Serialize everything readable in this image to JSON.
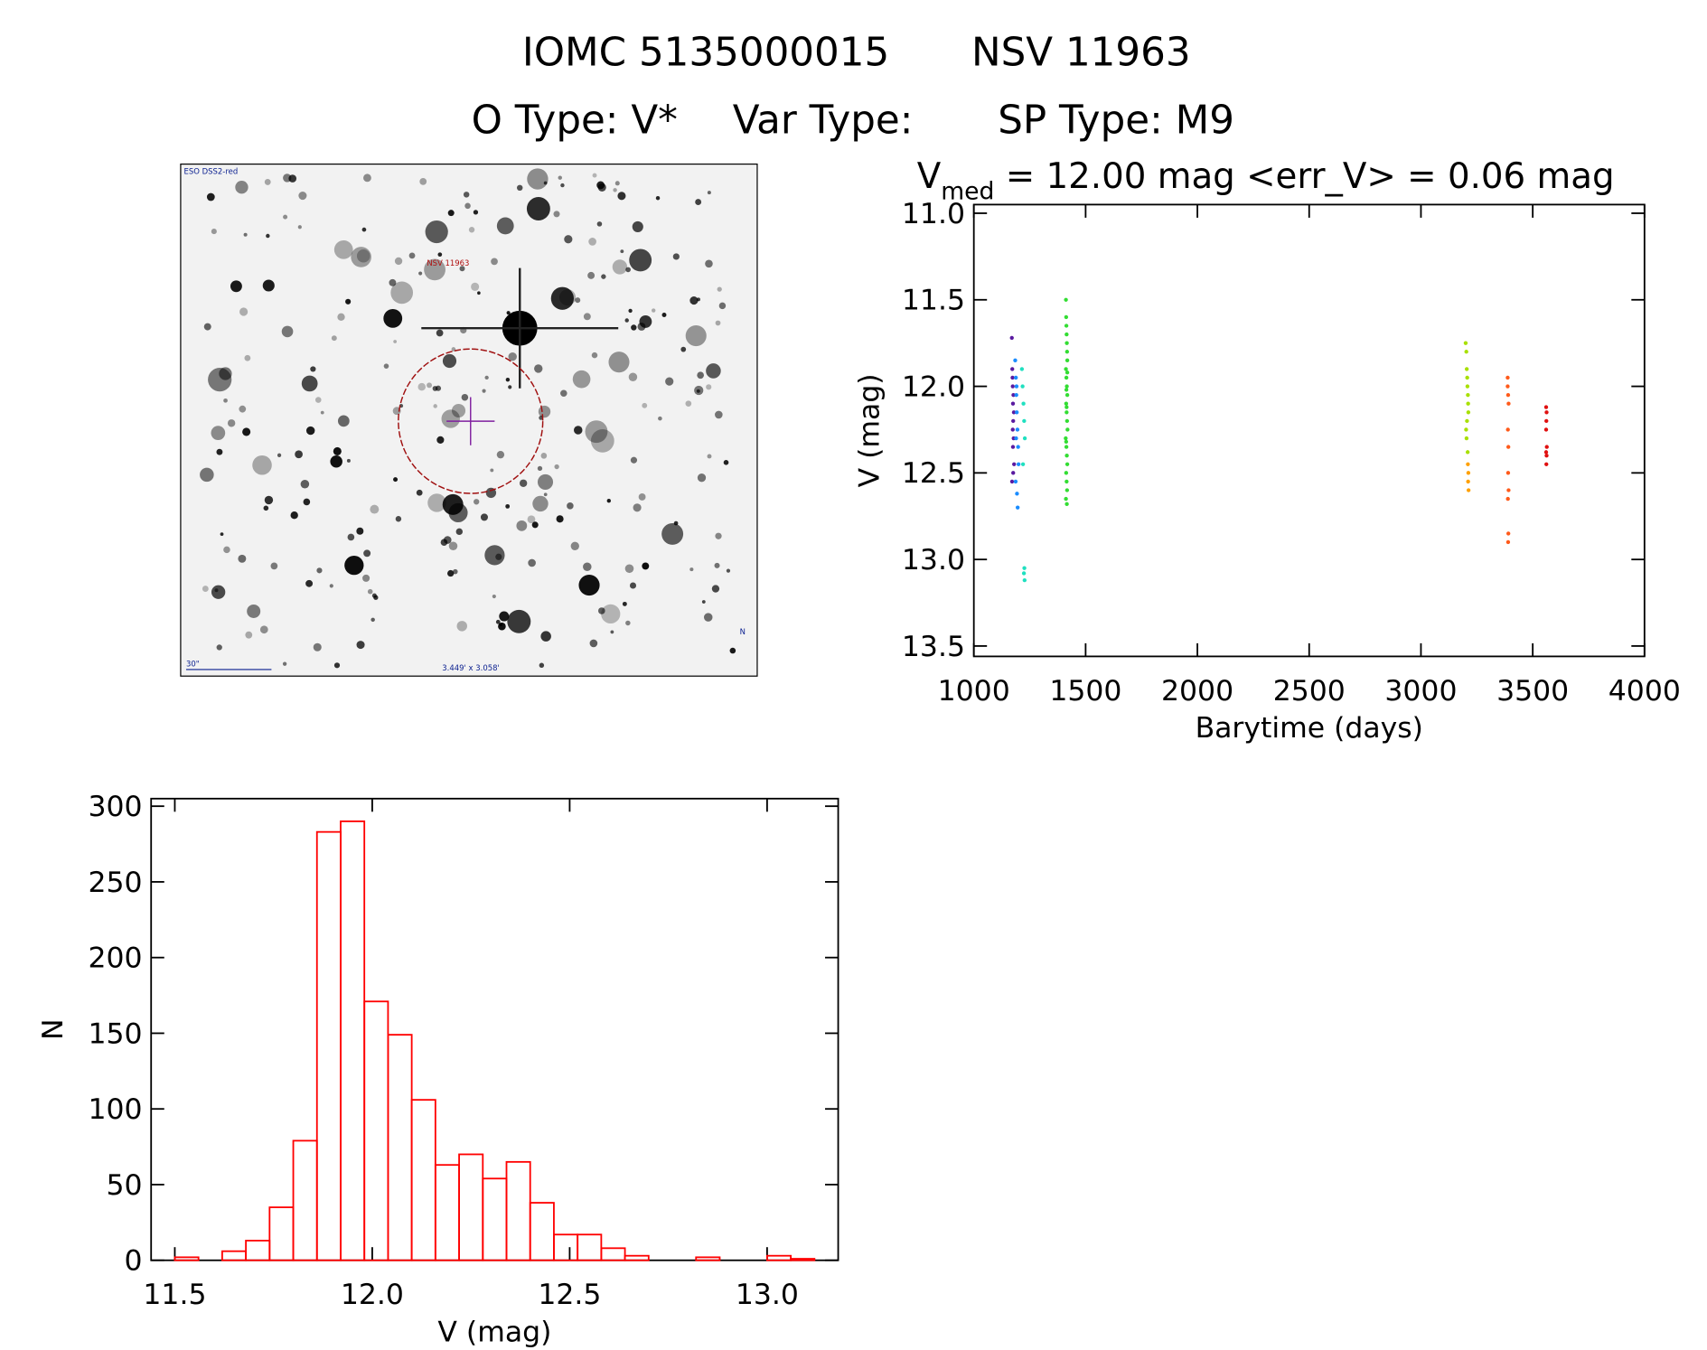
{
  "header": {
    "id": "IOMC 5135000015",
    "name": "NSV 11963",
    "o_type": "O Type: V*",
    "var_type": "Var Type:",
    "sp_type": "SP Type: M9"
  },
  "finder": {
    "survey": "ESO DSS2-red",
    "target": "NSV 11963",
    "scale": "30\"",
    "size": "3.449' x 3.058'",
    "north": "N"
  },
  "chart_data": [
    {
      "type": "scatter",
      "title_parts": [
        "V",
        "med",
        " = 12.00 mag <err_V> = 0.06 mag"
      ],
      "xlabel": "Barytime (days)",
      "ylabel": "V (mag)",
      "xlim": [
        1000,
        4000
      ],
      "xticks": [
        1000,
        1500,
        2000,
        2500,
        3000,
        3500,
        4000
      ],
      "ylim": [
        10.95,
        13.56
      ],
      "inverted": true,
      "yticks": [
        {
          "value": 11,
          "label": "11.0"
        },
        11.5,
        {
          "value": 12,
          "label": "12.0"
        },
        12.5,
        {
          "value": 13,
          "label": "13.0"
        },
        13.5
      ],
      "series": [
        {
          "color": "#5a1aa0",
          "x": [
            1170,
            1172,
            1174,
            1175,
            1176,
            1178,
            1180,
            1171,
            1173,
            1177,
            1179,
            1175,
            1174,
            1176
          ],
          "values": [
            11.72,
            11.9,
            12.0,
            12.1,
            12.2,
            12.3,
            12.45,
            12.55,
            11.95,
            12.05,
            12.15,
            12.35,
            12.25,
            12.5
          ]
        },
        {
          "color": "#1a8cff",
          "x": [
            1185,
            1188,
            1190,
            1192,
            1195,
            1198,
            1200,
            1187,
            1193,
            1196,
            1191,
            1189
          ],
          "values": [
            11.85,
            11.95,
            12.05,
            12.15,
            12.25,
            12.35,
            12.45,
            12.55,
            12.62,
            12.7,
            12.0,
            12.3
          ]
        },
        {
          "color": "#20e0c0",
          "x": [
            1215,
            1218,
            1222,
            1225,
            1228,
            1220,
            1226,
            1224,
            1227
          ],
          "values": [
            11.9,
            12.0,
            12.1,
            12.2,
            12.3,
            12.45,
            13.05,
            13.08,
            13.12
          ]
        },
        {
          "color": "#33dd33",
          "x": [
            1412,
            1413,
            1414,
            1415,
            1416,
            1417,
            1418,
            1412,
            1414,
            1416,
            1418,
            1413,
            1415,
            1417,
            1419,
            1411,
            1414,
            1416,
            1418,
            1413,
            1415,
            1417,
            1412,
            1416,
            1414,
            1418,
            1415,
            1413
          ],
          "values": [
            11.5,
            11.6,
            11.65,
            11.7,
            11.75,
            11.8,
            11.85,
            11.9,
            11.95,
            12.0,
            12.05,
            12.1,
            12.15,
            12.2,
            12.25,
            12.3,
            12.35,
            12.4,
            12.45,
            12.5,
            12.55,
            12.6,
            12.65,
            12.68,
            12.02,
            11.92,
            12.12,
            12.32
          ]
        },
        {
          "color": "#a8e000",
          "x": [
            3200,
            3203,
            3205,
            3208,
            3210,
            3212,
            3206,
            3204,
            3209,
            3211,
            3202,
            3207
          ],
          "values": [
            11.75,
            11.8,
            11.9,
            12.0,
            12.05,
            12.15,
            12.2,
            12.3,
            12.38,
            12.1,
            12.25,
            11.95
          ]
        },
        {
          "color": "#ffa000",
          "x": [
            3210,
            3212,
            3211,
            3213
          ],
          "values": [
            12.45,
            12.5,
            12.55,
            12.6
          ]
        },
        {
          "color": "#ff5a1a",
          "x": [
            3388,
            3390,
            3392,
            3389,
            3391,
            3390,
            3392,
            3389,
            3391,
            3390,
            3388
          ],
          "values": [
            11.95,
            12.05,
            12.1,
            12.25,
            12.35,
            12.5,
            12.6,
            12.65,
            12.85,
            12.9,
            12.0
          ]
        },
        {
          "color": "#e01010",
          "x": [
            3560,
            3562,
            3561,
            3563,
            3560,
            3562,
            3561,
            3560
          ],
          "values": [
            12.12,
            12.15,
            12.2,
            12.35,
            12.38,
            12.4,
            12.45,
            12.25
          ]
        }
      ]
    },
    {
      "type": "histogram",
      "color": "#ff0000",
      "xlabel": "V (mag)",
      "ylabel": "N",
      "bins": [
        11.5,
        11.56,
        11.62,
        11.68,
        11.74,
        11.8,
        11.86,
        11.92,
        11.98,
        12.04,
        12.1,
        12.16,
        12.22,
        12.28,
        12.34,
        12.4,
        12.46,
        12.52,
        12.58,
        12.64,
        12.7,
        12.76,
        12.82,
        12.88,
        12.94,
        13.0,
        13.06,
        13.12
      ],
      "values": [
        2,
        0,
        6,
        13,
        35,
        79,
        283,
        290,
        171,
        149,
        106,
        63,
        70,
        54,
        65,
        38,
        17,
        17,
        8,
        3,
        0,
        0,
        2,
        0,
        0,
        3,
        1
      ],
      "xlim": [
        11.44,
        13.18
      ],
      "xticks": [
        11.5,
        {
          "value": 12,
          "label": "12.0"
        },
        12.5,
        {
          "value": 13,
          "label": "13.0"
        }
      ],
      "ylim": [
        0,
        305
      ],
      "yticks": [
        0,
        50,
        100,
        150,
        200,
        250,
        300
      ]
    }
  ]
}
